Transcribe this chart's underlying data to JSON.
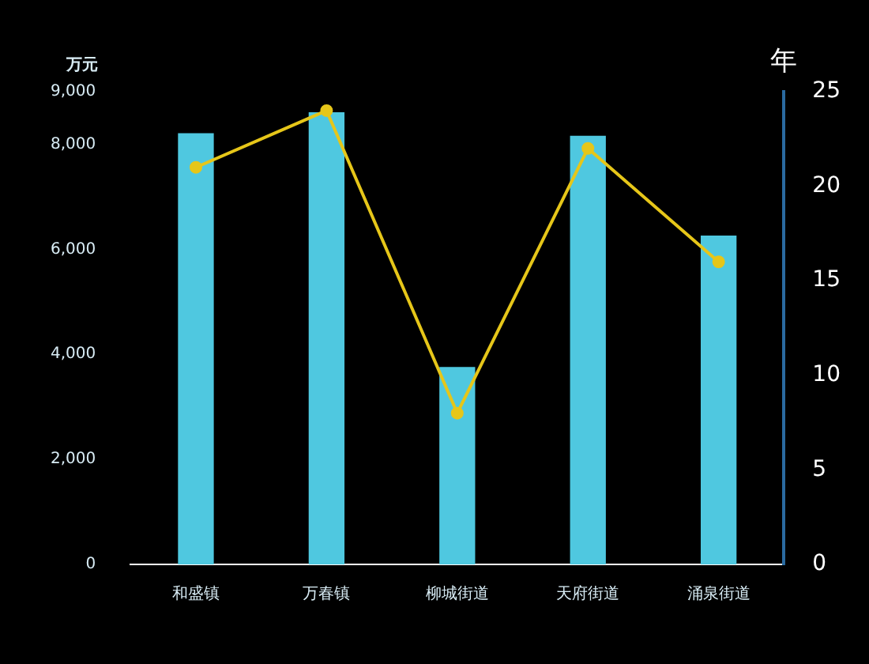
{
  "chart_data": {
    "type": "bar",
    "ylabel": "万元",
    "y2label": "年",
    "categories": [
      "和盛镇",
      "万春镇",
      "柳城街道",
      "天府街道",
      "涌泉街道"
    ],
    "series": [
      {
        "color": "#4fc8e0",
        "values": [
          8200,
          8600,
          3750,
          8150,
          6250
        ]
      },
      {
        "type": "line",
        "axis": "y2",
        "color": "#e6c619",
        "marker": "circle",
        "values": [
          21,
          24,
          8,
          22,
          16
        ]
      }
    ],
    "ylim": [
      0,
      9000
    ],
    "yticks": [
      {
        "value": 0,
        "label": "0"
      },
      {
        "value": 2000,
        "label": "2,000"
      },
      {
        "value": 4000,
        "label": "4,000"
      },
      {
        "value": 6000,
        "label": "6,000"
      },
      {
        "value": 8000,
        "label": "8,000"
      },
      {
        "value": 9000,
        "label": "9,000"
      }
    ],
    "y2lim": [
      0,
      25
    ],
    "y2ticks": [
      0,
      5,
      10,
      15,
      20,
      25
    ],
    "grid": false,
    "legend": false
  }
}
